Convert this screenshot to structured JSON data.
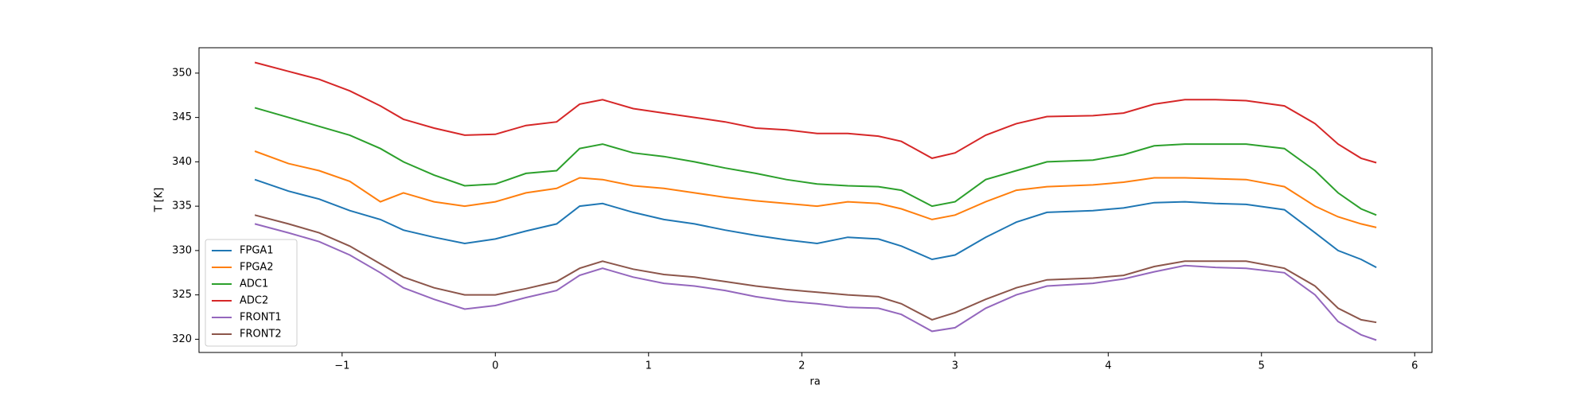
{
  "chart_data": {
    "type": "line",
    "xlabel": "ra",
    "ylabel": "T [K]",
    "x": [
      -1.57,
      -1.35,
      -1.15,
      -0.95,
      -0.75,
      -0.6,
      -0.4,
      -0.2,
      0,
      0.2,
      0.4,
      0.55,
      0.7,
      0.9,
      1.1,
      1.3,
      1.5,
      1.7,
      1.9,
      2.1,
      2.3,
      2.5,
      2.65,
      2.85,
      3.0,
      3.2,
      3.4,
      3.6,
      3.9,
      4.1,
      4.3,
      4.5,
      4.7,
      4.9,
      5.15,
      5.35,
      5.5,
      5.65,
      5.75
    ],
    "series": [
      {
        "name": "FPGA1",
        "color": "#1f77b4",
        "values": [
          338,
          336.7,
          335.8,
          334.5,
          333.5,
          332.3,
          331.5,
          330.8,
          331.3,
          332.2,
          333,
          335,
          335.3,
          334.3,
          333.5,
          333,
          332.3,
          331.7,
          331.2,
          330.8,
          331.5,
          331.3,
          330.5,
          329,
          329.5,
          331.5,
          333.2,
          334.3,
          334.5,
          334.8,
          335.4,
          335.5,
          335.3,
          335.2,
          334.6,
          332,
          330,
          329,
          328.1
        ]
      },
      {
        "name": "FPGA2",
        "color": "#ff7f0e",
        "values": [
          341.2,
          339.8,
          339,
          337.8,
          335.5,
          336.5,
          335.5,
          335,
          335.5,
          336.5,
          337,
          338.2,
          338,
          337.3,
          337,
          336.5,
          336,
          335.6,
          335.3,
          335,
          335.5,
          335.3,
          334.7,
          333.5,
          334,
          335.5,
          336.8,
          337.2,
          337.4,
          337.7,
          338.2,
          338.2,
          338.1,
          338,
          337.2,
          335,
          333.8,
          333,
          332.6
        ]
      },
      {
        "name": "ADC1",
        "color": "#2ca02c",
        "values": [
          346.1,
          345,
          344,
          343,
          341.5,
          340,
          338.5,
          337.3,
          337.5,
          338.7,
          339,
          341.5,
          342,
          341,
          340.6,
          340,
          339.3,
          338.7,
          338,
          337.5,
          337.3,
          337.2,
          336.8,
          335,
          335.5,
          338,
          339,
          340,
          340.2,
          340.8,
          341.8,
          342,
          342,
          342,
          341.5,
          339,
          336.5,
          334.7,
          334
        ]
      },
      {
        "name": "ADC2",
        "color": "#d62728",
        "values": [
          351.2,
          350.2,
          349.3,
          348,
          346.3,
          344.8,
          343.8,
          343,
          343.1,
          344.1,
          344.5,
          346.5,
          347,
          346,
          345.5,
          345,
          344.5,
          343.8,
          343.6,
          343.2,
          343.2,
          342.9,
          342.3,
          340.4,
          341,
          343,
          344.3,
          345.1,
          345.2,
          345.5,
          346.5,
          347,
          347,
          346.9,
          346.3,
          344.3,
          342,
          340.4,
          339.9
        ]
      },
      {
        "name": "FRONT1",
        "color": "#9467bd",
        "values": [
          333,
          332,
          331,
          329.5,
          327.5,
          325.8,
          324.5,
          323.4,
          323.8,
          324.7,
          325.5,
          327.2,
          328,
          327,
          326.3,
          326,
          325.5,
          324.8,
          324.3,
          324,
          323.6,
          323.5,
          322.8,
          320.9,
          321.3,
          323.5,
          325,
          326,
          326.3,
          326.8,
          327.6,
          328.3,
          328.1,
          328,
          327.5,
          325,
          322,
          320.5,
          319.9
        ]
      },
      {
        "name": "FRONT2",
        "color": "#8c564b",
        "values": [
          334,
          333,
          332,
          330.5,
          328.5,
          327,
          325.8,
          325,
          325,
          325.7,
          326.5,
          328,
          328.8,
          327.9,
          327.3,
          327,
          326.5,
          326,
          325.6,
          325.3,
          325,
          324.8,
          324,
          322.2,
          323,
          324.5,
          325.8,
          326.7,
          326.9,
          327.2,
          328.2,
          328.8,
          328.8,
          328.8,
          328,
          326,
          323.5,
          322.2,
          321.9
        ]
      }
    ],
    "xlim": [
      -1.934,
      6.113
    ],
    "ylim": [
      318.51,
      352.86
    ],
    "xticks": [
      {
        "value": -1,
        "label": "−1"
      },
      0,
      1,
      2,
      3,
      4,
      5,
      6
    ],
    "yticks": [
      320,
      325,
      330,
      335,
      340,
      345,
      350
    ],
    "legend": "lower left"
  }
}
